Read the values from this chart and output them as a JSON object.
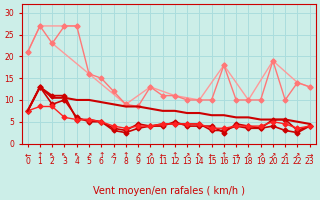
{
  "bg_color": "#cceee8",
  "grid_color": "#aadddd",
  "x_labels": [
    "0",
    "1",
    "2",
    "3",
    "4",
    "5",
    "6",
    "7",
    "8",
    "9",
    "10",
    "11",
    "12",
    "13",
    "14",
    "15",
    "16",
    "17",
    "18",
    "19",
    "20",
    "21",
    "22",
    "23"
  ],
  "xlabel": "Vent moyen/en rafales ( km/h )",
  "ylabel": "",
  "ylim": [
    0,
    32
  ],
  "yticks": [
    0,
    5,
    10,
    15,
    20,
    25,
    30
  ],
  "line_light": {
    "color": "#ff9999",
    "linewidth": 1.0,
    "marker": "D",
    "markersize": 2.5,
    "series": [
      [
        21,
        27,
        null,
        27,
        27,
        null,
        null,
        null,
        null,
        null,
        null,
        null,
        null,
        null,
        null,
        null,
        null,
        null,
        null,
        null,
        null,
        null,
        null,
        null
      ],
      [
        null,
        null,
        23,
        null,
        null,
        16,
        null,
        null,
        9,
        null,
        13,
        null,
        11,
        null,
        10,
        null,
        18,
        null,
        10,
        null,
        19,
        null,
        14,
        13
      ]
    ]
  },
  "line_medium_light": {
    "color": "#ff7777",
    "linewidth": 1.0,
    "marker": "D",
    "markersize": 2.5,
    "series": [
      [
        21,
        27,
        23,
        27,
        27,
        16,
        15,
        12,
        9,
        8.5,
        13,
        11,
        11,
        10,
        10,
        10,
        18,
        10,
        10,
        10,
        19,
        10,
        14,
        13
      ]
    ]
  },
  "line_dark_series": [
    {
      "color": "#cc0000",
      "linewidth": 1.2,
      "marker": "D",
      "markersize": 2.5,
      "data": [
        7.5,
        13,
        11,
        11,
        5.5,
        5.5,
        5,
        3,
        2.5,
        3.5,
        4,
        4.5,
        4.5,
        4.5,
        4.5,
        3,
        3,
        4,
        3.5,
        3.5,
        5.5,
        5.5,
        3,
        4
      ]
    },
    {
      "color": "#cc0000",
      "linewidth": 1.2,
      "marker": "D",
      "markersize": 2.5,
      "data": [
        7.5,
        13,
        9,
        10,
        6,
        5,
        5,
        3.5,
        3,
        4.5,
        4,
        4,
        5,
        4,
        4,
        4,
        2.5,
        4.5,
        4,
        3.5,
        4,
        3,
        2.5,
        4
      ]
    },
    {
      "color": "#ff2222",
      "linewidth": 1.0,
      "marker": "D",
      "markersize": 2.5,
      "data": [
        7.5,
        8.5,
        8.5,
        6,
        5.5,
        5.5,
        5,
        4,
        3.5,
        4,
        4,
        4.5,
        4.5,
        4.5,
        4.5,
        3.5,
        3.5,
        4,
        4,
        4,
        5,
        4.5,
        3.5,
        4
      ]
    },
    {
      "color": "#cc0000",
      "linewidth": 1.5,
      "marker": null,
      "markersize": 0,
      "data": [
        7.5,
        13,
        10.5,
        10.5,
        10,
        10,
        9.5,
        9.0,
        8.5,
        8.5,
        8.0,
        7.5,
        7.5,
        7.0,
        7.0,
        6.5,
        6.5,
        6.0,
        6.0,
        5.5,
        5.5,
        5.5,
        5.0,
        4.5
      ]
    }
  ],
  "arrow_row": [
    "←",
    "↑",
    "↖",
    "↖",
    "↖",
    "↗",
    "↑",
    "↗",
    "↑",
    "↗",
    "↗",
    "←",
    "↑",
    "↗",
    "↖",
    "←",
    "↑",
    "→",
    "↗",
    "↗",
    "↗",
    "↗",
    "↗",
    "→"
  ],
  "arrow_color": "#cc0000",
  "arrow_fontsize": 5.5,
  "xlabel_fontsize": 7,
  "tick_fontsize": 5.5,
  "title_fontsize": 7
}
